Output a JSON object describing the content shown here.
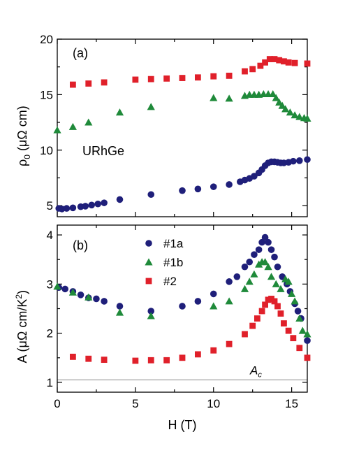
{
  "chart_data": [
    {
      "type": "scatter",
      "panel_label": "(a)",
      "annotation": "URhGe",
      "ylabel": "ρ",
      "ylabel_sub": "0",
      "ylabel_units": " (μΩ cm)",
      "xlim": [
        0,
        16
      ],
      "ylim": [
        4,
        20
      ],
      "x_ticks": [
        0,
        5,
        10,
        15
      ],
      "y_ticks": [
        5,
        10,
        15,
        20
      ],
      "series": [
        {
          "key": "s1a",
          "marker": "circle",
          "color": "#1f1f7a",
          "points": [
            [
              0.1,
              4.75
            ],
            [
              0.3,
              4.7
            ],
            [
              0.6,
              4.75
            ],
            [
              1,
              4.8
            ],
            [
              1.5,
              4.9
            ],
            [
              1.8,
              4.95
            ],
            [
              2.2,
              5.05
            ],
            [
              2.6,
              5.15
            ],
            [
              3,
              5.25
            ],
            [
              4,
              5.55
            ],
            [
              6,
              6.0
            ],
            [
              8,
              6.35
            ],
            [
              9,
              6.5
            ],
            [
              10,
              6.7
            ],
            [
              11,
              6.9
            ],
            [
              11.7,
              7.15
            ],
            [
              12,
              7.3
            ],
            [
              12.3,
              7.45
            ],
            [
              12.6,
              7.65
            ],
            [
              12.9,
              7.95
            ],
            [
              13.1,
              8.25
            ],
            [
              13.3,
              8.6
            ],
            [
              13.5,
              8.85
            ],
            [
              13.7,
              8.95
            ],
            [
              13.9,
              8.95
            ],
            [
              14.1,
              8.9
            ],
            [
              14.3,
              8.85
            ],
            [
              14.5,
              8.85
            ],
            [
              14.8,
              8.9
            ],
            [
              15.1,
              9.0
            ],
            [
              15.5,
              9.05
            ],
            [
              16,
              9.15
            ]
          ]
        },
        {
          "key": "s1b",
          "marker": "triangle",
          "color": "#1f8a3a",
          "points": [
            [
              0,
              11.8
            ],
            [
              1,
              12.1
            ],
            [
              2,
              12.5
            ],
            [
              4,
              13.4
            ],
            [
              6,
              13.9
            ],
            [
              10,
              14.7
            ],
            [
              11,
              14.65
            ],
            [
              12,
              14.9
            ],
            [
              12.3,
              15.0
            ],
            [
              12.6,
              15.0
            ],
            [
              12.9,
              15.0
            ],
            [
              13.2,
              15.05
            ],
            [
              13.5,
              15.05
            ],
            [
              13.8,
              15.05
            ],
            [
              14.0,
              14.7
            ],
            [
              14.2,
              14.3
            ],
            [
              14.4,
              14.0
            ],
            [
              14.6,
              13.7
            ],
            [
              14.9,
              13.4
            ],
            [
              15.2,
              13.15
            ],
            [
              15.5,
              13.0
            ],
            [
              15.8,
              12.9
            ],
            [
              16,
              12.85
            ]
          ]
        },
        {
          "key": "s2",
          "marker": "square",
          "color": "#e0202a",
          "points": [
            [
              1,
              15.9
            ],
            [
              2,
              16.0
            ],
            [
              3,
              16.1
            ],
            [
              5,
              16.35
            ],
            [
              6,
              16.4
            ],
            [
              7,
              16.45
            ],
            [
              8,
              16.5
            ],
            [
              9,
              16.55
            ],
            [
              10,
              16.65
            ],
            [
              11,
              16.7
            ],
            [
              12,
              17.1
            ],
            [
              12.5,
              17.3
            ],
            [
              13,
              17.6
            ],
            [
              13.3,
              17.9
            ],
            [
              13.6,
              18.2
            ],
            [
              13.9,
              18.2
            ],
            [
              14.2,
              18.1
            ],
            [
              14.5,
              18.0
            ],
            [
              14.8,
              17.9
            ],
            [
              15.2,
              17.85
            ],
            [
              16,
              17.8
            ]
          ]
        }
      ]
    },
    {
      "type": "scatter",
      "panel_label": "(b)",
      "ylabel": "A (μΩ cm/K",
      "ylabel_sup": "2",
      "ylabel_close": ")",
      "xlabel": "H (T)",
      "xlim": [
        0,
        16
      ],
      "ylim": [
        0.8,
        4.2
      ],
      "x_ticks": [
        0,
        5,
        10,
        15
      ],
      "y_ticks": [
        1,
        2,
        3,
        4
      ],
      "ref_line": {
        "y": 1.05,
        "label": "A",
        "label_sub": "c"
      },
      "legend": [
        {
          "key": "s1a",
          "label": "#1a"
        },
        {
          "key": "s1b",
          "label": "#1b"
        },
        {
          "key": "s2",
          "label": "#2"
        }
      ],
      "series": [
        {
          "key": "s1a",
          "marker": "circle",
          "color": "#1f1f7a",
          "points": [
            [
              0.1,
              2.93
            ],
            [
              0.5,
              2.9
            ],
            [
              1,
              2.85
            ],
            [
              1.5,
              2.78
            ],
            [
              2,
              2.72
            ],
            [
              2.5,
              2.7
            ],
            [
              3,
              2.65
            ],
            [
              4,
              2.55
            ],
            [
              6,
              2.45
            ],
            [
              8,
              2.55
            ],
            [
              9,
              2.65
            ],
            [
              10,
              2.8
            ],
            [
              11,
              3.05
            ],
            [
              11.5,
              3.15
            ],
            [
              12,
              3.35
            ],
            [
              12.3,
              3.45
            ],
            [
              12.6,
              3.6
            ],
            [
              12.9,
              3.7
            ],
            [
              13.1,
              3.85
            ],
            [
              13.3,
              3.95
            ],
            [
              13.5,
              3.85
            ],
            [
              13.7,
              3.7
            ],
            [
              13.9,
              3.55
            ],
            [
              14.1,
              3.35
            ],
            [
              14.4,
              3.15
            ],
            [
              14.7,
              3.0
            ],
            [
              14.9,
              2.85
            ],
            [
              15.2,
              2.6
            ],
            [
              15.4,
              2.45
            ],
            [
              15.6,
              2.3
            ],
            [
              16,
              1.85
            ]
          ]
        },
        {
          "key": "s1b",
          "marker": "triangle",
          "color": "#1f8a3a",
          "points": [
            [
              0,
              2.95
            ],
            [
              1,
              2.83
            ],
            [
              2,
              2.73
            ],
            [
              4,
              2.42
            ],
            [
              6,
              2.35
            ],
            [
              10,
              2.55
            ],
            [
              11,
              2.65
            ],
            [
              12,
              2.9
            ],
            [
              12.3,
              3.05
            ],
            [
              12.6,
              3.2
            ],
            [
              12.9,
              3.4
            ],
            [
              13.1,
              3.45
            ],
            [
              13.3,
              3.45
            ],
            [
              13.5,
              3.35
            ],
            [
              13.7,
              3.15
            ],
            [
              14,
              3.0
            ],
            [
              14.3,
              2.9
            ],
            [
              14.6,
              3.1
            ],
            [
              14.8,
              3.05
            ],
            [
              15.0,
              2.8
            ],
            [
              15.2,
              2.65
            ],
            [
              15.5,
              2.3
            ],
            [
              15.7,
              2.05
            ],
            [
              16,
              1.98
            ]
          ]
        },
        {
          "key": "s2",
          "marker": "square",
          "color": "#e0202a",
          "points": [
            [
              1,
              1.52
            ],
            [
              2,
              1.48
            ],
            [
              3,
              1.46
            ],
            [
              5,
              1.44
            ],
            [
              6,
              1.45
            ],
            [
              7,
              1.45
            ],
            [
              8,
              1.5
            ],
            [
              9,
              1.57
            ],
            [
              10,
              1.65
            ],
            [
              11,
              1.78
            ],
            [
              12,
              1.98
            ],
            [
              12.5,
              2.15
            ],
            [
              12.8,
              2.3
            ],
            [
              13.1,
              2.45
            ],
            [
              13.3,
              2.58
            ],
            [
              13.5,
              2.68
            ],
            [
              13.7,
              2.7
            ],
            [
              13.9,
              2.65
            ],
            [
              14.1,
              2.55
            ],
            [
              14.3,
              2.4
            ],
            [
              14.5,
              2.2
            ],
            [
              14.8,
              2.05
            ],
            [
              15.1,
              1.9
            ],
            [
              15.5,
              1.7
            ],
            [
              16,
              1.5
            ]
          ]
        }
      ]
    }
  ]
}
